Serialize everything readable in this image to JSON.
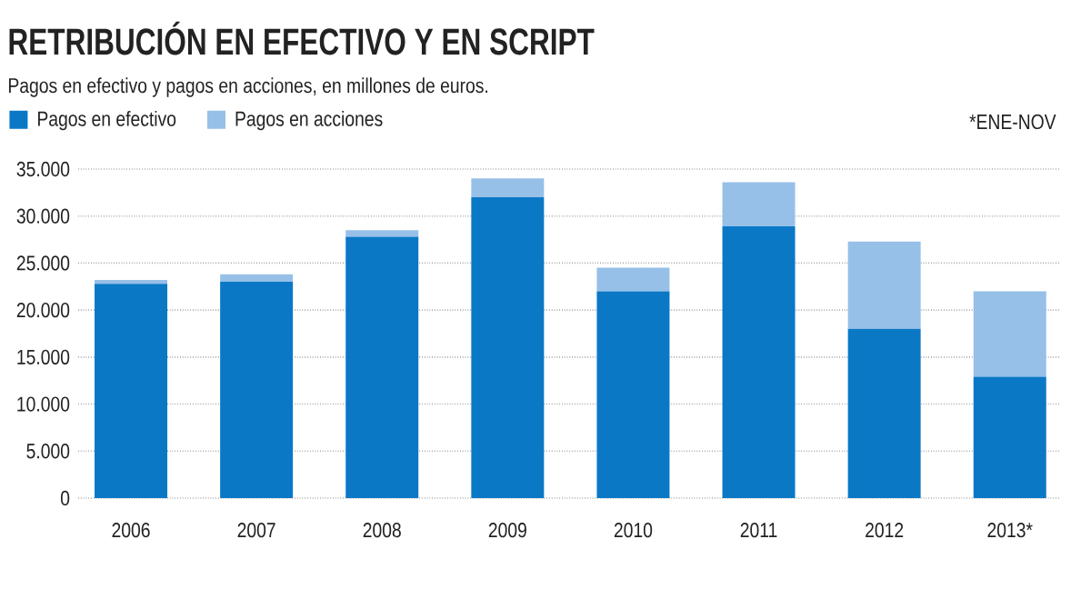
{
  "chart_data": {
    "type": "bar",
    "stacked": true,
    "title": "RETRIBUCIÓN EN EFECTIVO Y EN SCRIPT",
    "subtitle": "Pagos en efectivo y pagos en acciones, en millones de euros.",
    "categories": [
      "2006",
      "2007",
      "2008",
      "2009",
      "2010",
      "2011",
      "2012",
      "2013*"
    ],
    "series": [
      {
        "name": "Pagos en efectivo",
        "color": "#0b78c6",
        "values": [
          22800,
          23000,
          27800,
          32000,
          22000,
          28900,
          18000,
          12900
        ]
      },
      {
        "name": "Pagos en acciones",
        "color": "#96c0e8",
        "values": [
          400,
          800,
          700,
          2000,
          2500,
          4700,
          9300,
          9100
        ]
      }
    ],
    "ylim": [
      0,
      35000
    ],
    "yticks": [
      0,
      {
        "value": 5000,
        "label": "5.000"
      },
      {
        "value": 10000,
        "label": "10.000"
      },
      {
        "value": 15000,
        "label": "15.000"
      },
      {
        "value": 20000,
        "label": "20.000"
      },
      {
        "value": 25000,
        "label": "25.000"
      },
      {
        "value": 30000,
        "label": "30.000"
      },
      {
        "value": 35000,
        "label": "35.000"
      }
    ],
    "grid": "y",
    "legend": "top left",
    "annotations": [
      "*ENE-NOV"
    ]
  }
}
